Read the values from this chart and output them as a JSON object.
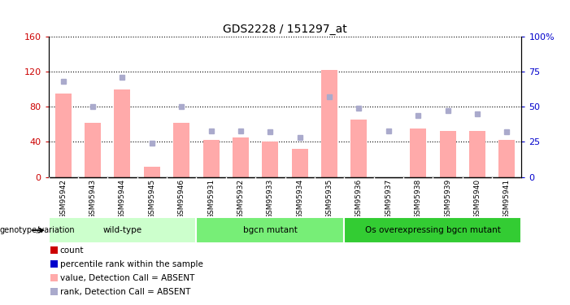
{
  "title": "GDS2228 / 151297_at",
  "samples": [
    "GSM95942",
    "GSM95943",
    "GSM95944",
    "GSM95945",
    "GSM95946",
    "GSM95931",
    "GSM95932",
    "GSM95933",
    "GSM95934",
    "GSM95935",
    "GSM95936",
    "GSM95937",
    "GSM95938",
    "GSM95939",
    "GSM95940",
    "GSM95941"
  ],
  "bar_values": [
    95,
    62,
    100,
    12,
    62,
    42,
    45,
    40,
    32,
    122,
    65,
    0,
    55,
    52,
    52,
    42
  ],
  "dot_values_pct": [
    68,
    50,
    71,
    24,
    50,
    33,
    33,
    32,
    28,
    57,
    49,
    33,
    44,
    47,
    45,
    32
  ],
  "bar_color": "#ffaaaa",
  "dot_color": "#aaaacc",
  "ylim_left": [
    0,
    160
  ],
  "ylim_right": [
    0,
    100
  ],
  "yticks_left": [
    0,
    40,
    80,
    120,
    160
  ],
  "yticks_right": [
    0,
    25,
    50,
    75,
    100
  ],
  "ytick_labels_left": [
    "0",
    "40",
    "80",
    "120",
    "160"
  ],
  "ytick_labels_right": [
    "0",
    "25",
    "50",
    "75",
    "100%"
  ],
  "groups": [
    {
      "label": "wild-type",
      "start": 0,
      "end": 5,
      "color": "#ccffcc"
    },
    {
      "label": "bgcn mutant",
      "start": 5,
      "end": 10,
      "color": "#77ee77"
    },
    {
      "label": "Os overexpressing bgcn mutant",
      "start": 10,
      "end": 16,
      "color": "#33cc33"
    }
  ],
  "group_row_label": "genotype/variation",
  "legend_items": [
    {
      "label": "count",
      "color": "#cc0000"
    },
    {
      "label": "percentile rank within the sample",
      "color": "#0000cc"
    },
    {
      "label": "value, Detection Call = ABSENT",
      "color": "#ffaaaa"
    },
    {
      "label": "rank, Detection Call = ABSENT",
      "color": "#aaaacc"
    }
  ],
  "left_axis_color": "#cc0000",
  "right_axis_color": "#0000cc",
  "grid_linestyle": ":",
  "grid_linewidth": 0.8,
  "xtick_bg_color": "#dddddd",
  "fig_bg": "#ffffff"
}
